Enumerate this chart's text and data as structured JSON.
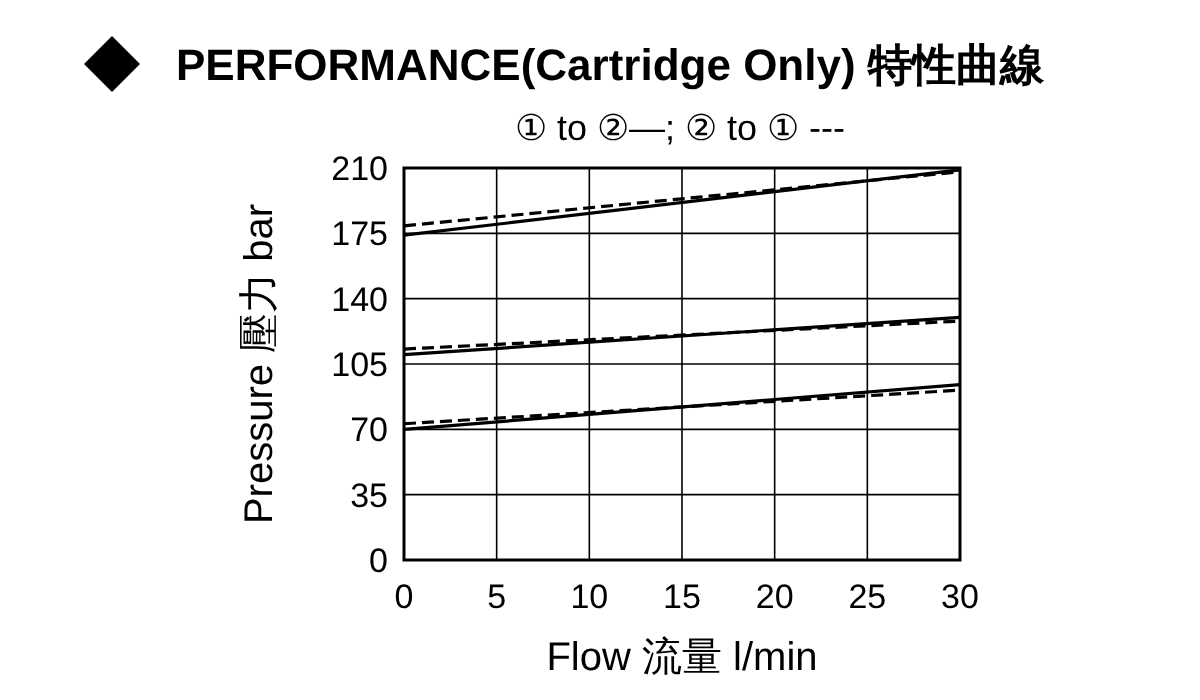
{
  "chart_data": {
    "type": "line",
    "title": "PERFORMANCE(Cartridge Only) 特性曲線",
    "subtitle": "① to ②—; ② to ① ---",
    "xlabel": "Flow 流量 l/min",
    "ylabel": "Pressure 壓力 bar",
    "x": [
      0,
      30
    ],
    "xlim": [
      0,
      30
    ],
    "xticks": [
      0,
      5,
      10,
      15,
      20,
      25,
      30
    ],
    "ylim": [
      0,
      210
    ],
    "yticks": [
      0,
      35,
      70,
      105,
      140,
      175,
      210
    ],
    "grid": true,
    "series": [
      {
        "color": "#000000",
        "line_style": "solid",
        "values": [
          174,
          209
        ]
      },
      {
        "color": "#000000",
        "line_style": "dashed",
        "values": [
          179,
          208
        ]
      },
      {
        "color": "#000000",
        "line_style": "solid",
        "values": [
          110,
          130
        ]
      },
      {
        "color": "#000000",
        "line_style": "dashed",
        "values": [
          113,
          128
        ]
      },
      {
        "color": "#000000",
        "line_style": "solid",
        "values": [
          70,
          94
        ]
      },
      {
        "color": "#000000",
        "line_style": "dashed",
        "values": [
          73,
          91
        ]
      }
    ]
  }
}
